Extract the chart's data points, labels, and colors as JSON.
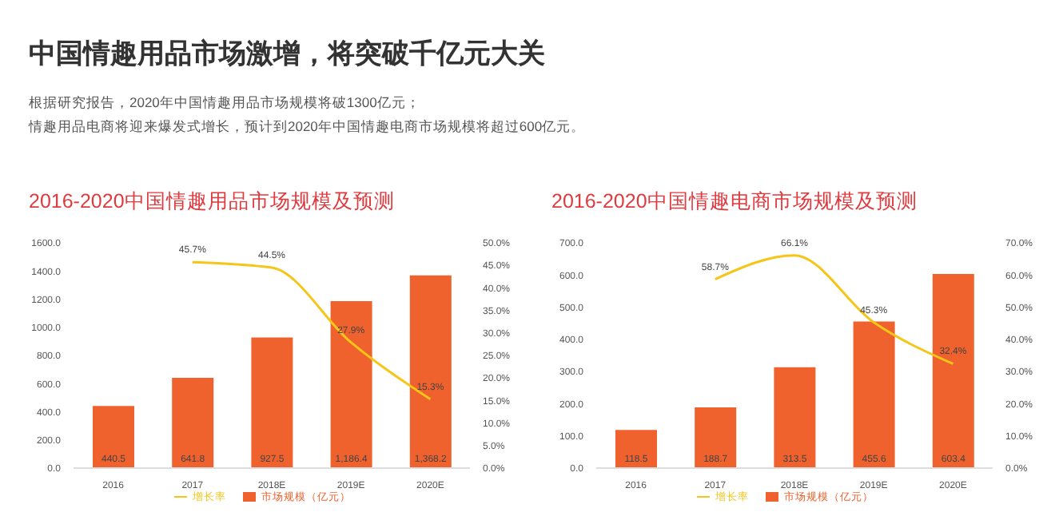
{
  "chart_data": [
    {
      "type": "other",
      "title": "中国情趣用品市场激增，将突破千亿元大关",
      "annotations": [
        "根据研究报告，2020年中国情趣用品市场规模将破1300亿元；",
        "情趣用品电商将迎来爆发式增长，预计到2020年中国情趣电商市场规模将超过600亿元。"
      ]
    },
    {
      "type": "bar",
      "title": "2016-2020中国情趣用品市场规模及预测",
      "categories": [
        "2016",
        "2017",
        "2018E",
        "2019E",
        "2020E"
      ],
      "series": [
        {
          "name": "市场规模（亿元）",
          "type": "bar",
          "color": "#f0622d",
          "values": [
            440.5,
            641.8,
            927.5,
            1186.4,
            1368.2
          ],
          "value_labels": [
            "440.5",
            "641.8",
            "927.5",
            "1,186.4",
            "1,368.2"
          ]
        },
        {
          "name": "增长率",
          "type": "line",
          "axis": "y2",
          "color": "#f5c518",
          "values": [
            null,
            45.7,
            44.5,
            27.9,
            15.3
          ],
          "value_labels": [
            null,
            "45.7%",
            "44.5%",
            "27.9%",
            "15.3%"
          ]
        }
      ],
      "ylim": [
        0,
        1600
      ],
      "yticks": [
        {
          "value": 0,
          "label": "0.0"
        },
        {
          "value": 200,
          "label": "200.0"
        },
        {
          "value": 400,
          "label": "400.0"
        },
        {
          "value": 600,
          "label": "600.0"
        },
        {
          "value": 800,
          "label": "800.0"
        },
        {
          "value": 1000,
          "label": "1000.0"
        },
        {
          "value": 1200,
          "label": "1200.0"
        },
        {
          "value": 1400,
          "label": "1400.0"
        },
        {
          "value": 1600,
          "label": "1600.0"
        }
      ],
      "y2lim": [
        0,
        50
      ],
      "y2ticks": [
        {
          "value": 0,
          "label": "0.0%"
        },
        {
          "value": 5,
          "label": "5.0%"
        },
        {
          "value": 10,
          "label": "10.0%"
        },
        {
          "value": 15,
          "label": "15.0%"
        },
        {
          "value": 20,
          "label": "20.0%"
        },
        {
          "value": 25,
          "label": "25.0%"
        },
        {
          "value": 30,
          "label": "30.0%"
        },
        {
          "value": 35,
          "label": "35.0%"
        },
        {
          "value": 40,
          "label": "40.0%"
        },
        {
          "value": 45,
          "label": "45.0%"
        },
        {
          "value": 50,
          "label": "50.0%"
        }
      ],
      "legend": "bottom",
      "marker": "none"
    },
    {
      "type": "bar",
      "title": "2016-2020中国情趣电商市场规模及预测",
      "categories": [
        "2016",
        "2017",
        "2018E",
        "2019E",
        "2020E"
      ],
      "series": [
        {
          "name": "市场规模（亿元）",
          "type": "bar",
          "color": "#f0622d",
          "values": [
            118.5,
            188.7,
            313.5,
            455.6,
            603.4
          ],
          "value_labels": [
            "118.5",
            "188.7",
            "313.5",
            "455.6",
            "603.4"
          ]
        },
        {
          "name": "增长率",
          "type": "line",
          "axis": "y2",
          "color": "#f5c518",
          "values": [
            null,
            58.7,
            66.1,
            45.3,
            32.4
          ],
          "value_labels": [
            null,
            "58.7%",
            "66.1%",
            "45.3%",
            "32.4%"
          ]
        }
      ],
      "ylim": [
        0,
        700
      ],
      "yticks": [
        {
          "value": 0,
          "label": "0.0"
        },
        {
          "value": 100,
          "label": "100.0"
        },
        {
          "value": 200,
          "label": "200.0"
        },
        {
          "value": 300,
          "label": "300.0"
        },
        {
          "value": 400,
          "label": "400.0"
        },
        {
          "value": 500,
          "label": "500.0"
        },
        {
          "value": 600,
          "label": "600.0"
        },
        {
          "value": 700,
          "label": "700.0"
        }
      ],
      "y2lim": [
        0,
        70
      ],
      "y2ticks": [
        {
          "value": 0,
          "label": "0.0%"
        },
        {
          "value": 10,
          "label": "10.0%"
        },
        {
          "value": 20,
          "label": "20.0%"
        },
        {
          "value": 30,
          "label": "30.0%"
        },
        {
          "value": 40,
          "label": "40.0%"
        },
        {
          "value": 50,
          "label": "50.0%"
        },
        {
          "value": 60,
          "label": "60.0%"
        },
        {
          "value": 70,
          "label": "70.0%"
        }
      ],
      "legend": "bottom",
      "marker": "none"
    }
  ]
}
